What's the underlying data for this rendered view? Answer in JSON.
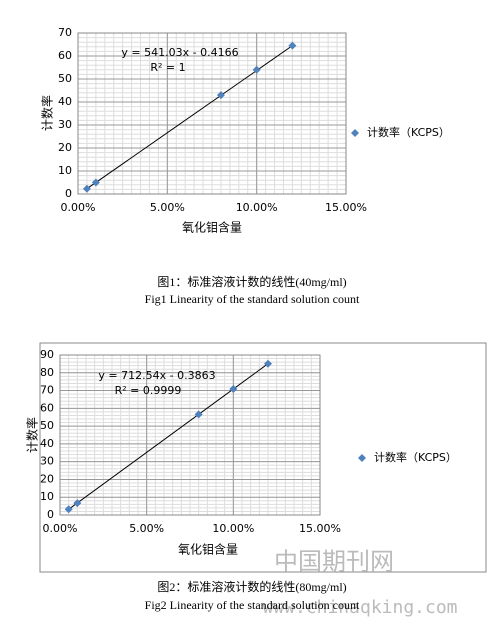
{
  "chart_data": [
    {
      "type": "scatter",
      "xlabel": "氧化钼含量",
      "ylabel": "计数率",
      "series": [
        {
          "name": "计数率（KCPS）",
          "color": "#4f81bd",
          "x": [
            0.005,
            0.01,
            0.08,
            0.1,
            0.12
          ],
          "values": [
            2.3,
            5,
            43,
            54,
            64.5
          ]
        }
      ],
      "xlim": [
        0,
        0.15
      ],
      "xticks": [
        {
          "value": 0,
          "label": "0.00%"
        },
        {
          "value": 0.05,
          "label": "5.00%"
        },
        {
          "value": 0.1,
          "label": "10.00%"
        },
        {
          "value": 0.15,
          "label": "15.00%"
        }
      ],
      "ylim": [
        0,
        70
      ],
      "yticks": [
        0,
        10,
        20,
        30,
        40,
        50,
        60,
        70
      ],
      "grid": true,
      "trendline": true,
      "legend": "right",
      "annotations": [
        "y = 541.03x - 0.4166",
        "R² = 1"
      ],
      "caption": "图1：标准溶液计数的线性(40mg/ml)",
      "caption_en": "Fig1 Linearity of the standard solution count"
    },
    {
      "type": "scatter",
      "xlabel": "氧化钼含量",
      "ylabel": "计数率",
      "series": [
        {
          "name": "计数率（KCPS）",
          "color": "#4f81bd",
          "x": [
            0.005,
            0.01,
            0.08,
            0.1,
            0.12
          ],
          "values": [
            3.2,
            6.7,
            56.6,
            70.9,
            85.1
          ]
        }
      ],
      "xlim": [
        0,
        0.15
      ],
      "xticks": [
        {
          "value": 0,
          "label": "0.00%"
        },
        {
          "value": 0.05,
          "label": "5.00%"
        },
        {
          "value": 0.1,
          "label": "10.00%"
        },
        {
          "value": 0.15,
          "label": "15.00%"
        }
      ],
      "ylim": [
        0,
        90
      ],
      "yticks": [
        0,
        10,
        20,
        30,
        40,
        50,
        60,
        70,
        80,
        90
      ],
      "grid": true,
      "trendline": true,
      "legend": "right",
      "annotations": [
        "y = 712.54x - 0.3863",
        "R² = 0.9999"
      ],
      "caption": "图2：标准溶液计数的线性(80mg/ml)",
      "caption_en": "Fig2 Linearity of the standard solution count"
    }
  ],
  "watermark": {
    "title": "中国期刊网",
    "url": "www.chinaqking.com"
  }
}
